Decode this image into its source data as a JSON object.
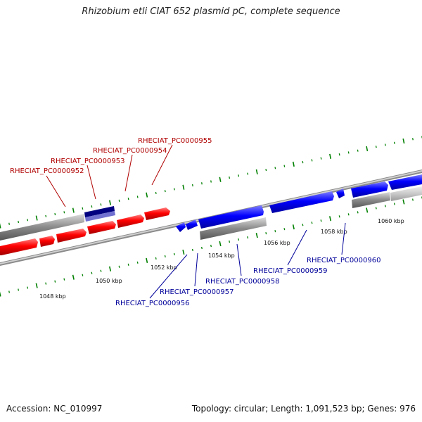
{
  "title": "Rhizobium etli CIAT 652 plasmid pC, complete sequence",
  "footer": {
    "accession": "Accession: NC_010997",
    "summary": "Topology: circular; Length: 1,091,523 bp; Genes: 976"
  },
  "colors": {
    "forward_gene": "#ff0000",
    "reverse_gene": "#0000ff",
    "forward_label": "#b00000",
    "reverse_label": "#00009a",
    "tick": "#008000",
    "backbone": "#808080",
    "highlight": "#000080"
  },
  "ticks": [
    "1048 kbp",
    "1050 kbp",
    "1052 kbp",
    "1054 kbp",
    "1056 kbp",
    "1058 kbp",
    "1060 kbp"
  ],
  "forward_genes": [
    "RHECIAT_PC0000952",
    "RHECIAT_PC0000953",
    "RHECIAT_PC0000954",
    "RHECIAT_PC0000955"
  ],
  "reverse_genes": [
    "RHECIAT_PC0000956",
    "RHECIAT_PC0000957",
    "RHECIAT_PC0000958",
    "RHECIAT_PC0000959",
    "RHECIAT_PC0000960"
  ]
}
